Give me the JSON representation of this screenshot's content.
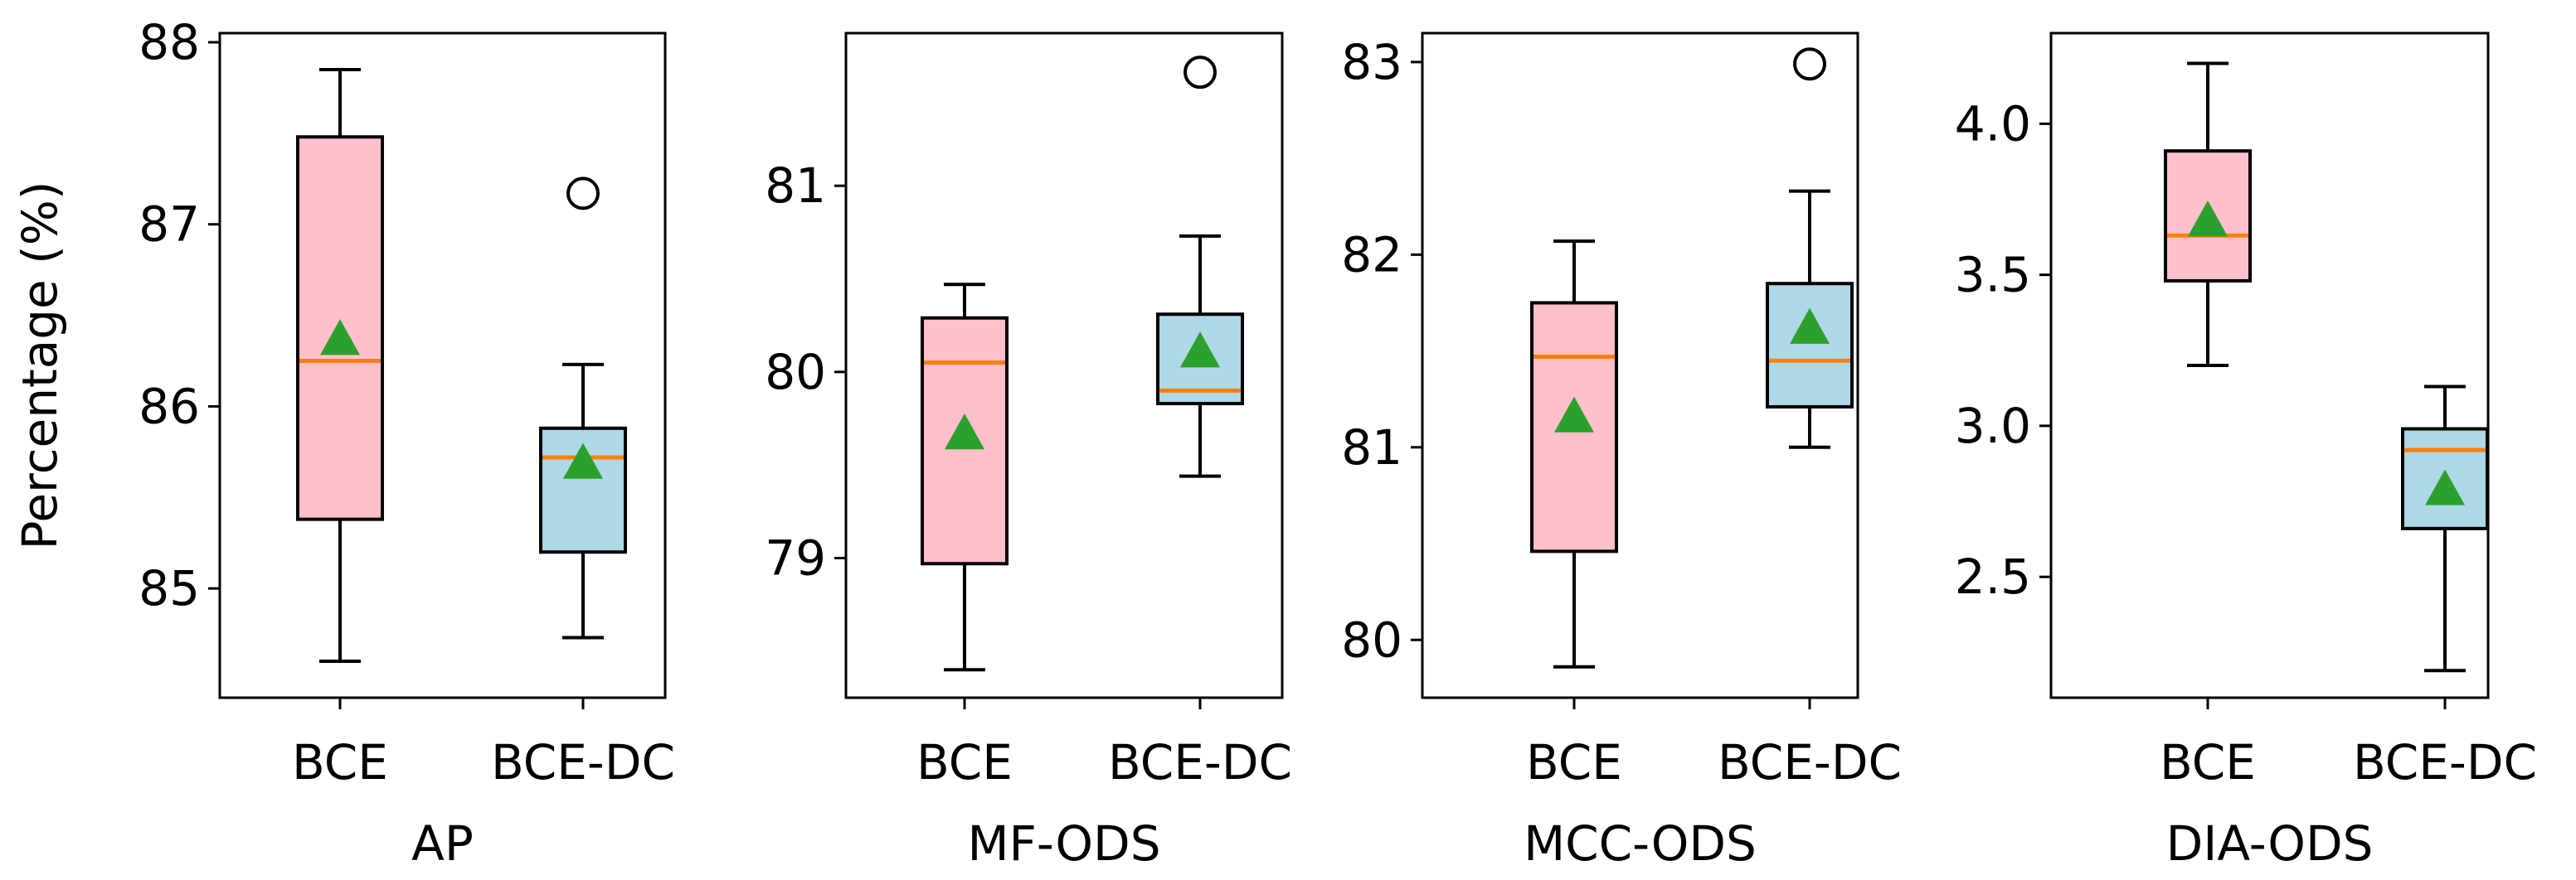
{
  "colors": {
    "bce_box": "#ffc0cb",
    "bce_dc_box": "#add8e6",
    "median": "#ff7f0e",
    "mean_marker": "#2ca02c",
    "outline": "#000000"
  },
  "chart_data": [
    {
      "type": "box",
      "xlabel": "AP",
      "ylabel": "Percentage (%)",
      "categories": [
        "BCE",
        "BCE-DC"
      ],
      "ylim": [
        84.4,
        88.05
      ],
      "yticks": [
        85,
        86,
        87,
        88
      ],
      "boxes": [
        {
          "name": "BCE",
          "whisker_low": 84.6,
          "q1": 85.38,
          "median": 86.25,
          "q3": 87.48,
          "whisker_high": 87.85,
          "mean": 86.37,
          "outliers": []
        },
        {
          "name": "BCE-DC",
          "whisker_low": 84.73,
          "q1": 85.2,
          "median": 85.72,
          "q3": 85.88,
          "whisker_high": 86.23,
          "mean": 85.69,
          "outliers": [
            87.17
          ]
        }
      ]
    },
    {
      "type": "box",
      "xlabel": "MF-ODS",
      "ylabel": "",
      "categories": [
        "BCE",
        "BCE-DC"
      ],
      "ylim": [
        78.25,
        81.82
      ],
      "yticks": [
        79,
        80,
        81
      ],
      "boxes": [
        {
          "name": "BCE",
          "whisker_low": 78.4,
          "q1": 78.97,
          "median": 80.05,
          "q3": 80.29,
          "whisker_high": 80.47,
          "mean": 79.67,
          "outliers": []
        },
        {
          "name": "BCE-DC",
          "whisker_low": 79.44,
          "q1": 79.83,
          "median": 79.9,
          "q3": 80.31,
          "whisker_high": 80.73,
          "mean": 80.11,
          "outliers": [
            81.61
          ]
        }
      ]
    },
    {
      "type": "box",
      "xlabel": "MCC-ODS",
      "ylabel": "",
      "categories": [
        "BCE",
        "BCE-DC"
      ],
      "ylim": [
        79.7,
        83.15
      ],
      "yticks": [
        80,
        81,
        82,
        83
      ],
      "boxes": [
        {
          "name": "BCE",
          "whisker_low": 79.86,
          "q1": 80.46,
          "median": 81.47,
          "q3": 81.75,
          "whisker_high": 82.07,
          "mean": 81.16,
          "outliers": []
        },
        {
          "name": "BCE-DC",
          "whisker_low": 81.0,
          "q1": 81.21,
          "median": 81.45,
          "q3": 81.85,
          "whisker_high": 82.33,
          "mean": 81.62,
          "outliers": [
            82.99
          ]
        }
      ]
    },
    {
      "type": "box",
      "xlabel": "DIA-ODS",
      "ylabel": "",
      "categories": [
        "BCE",
        "BCE-DC"
      ],
      "ylim": [
        2.1,
        4.3
      ],
      "yticks": [
        "2.5",
        "3.0",
        "3.5",
        "4.0"
      ],
      "boxes": [
        {
          "name": "BCE",
          "whisker_low": 3.2,
          "q1": 3.48,
          "median": 3.63,
          "q3": 3.91,
          "whisker_high": 4.2,
          "mean": 3.68,
          "outliers": []
        },
        {
          "name": "BCE-DC",
          "whisker_low": 2.19,
          "q1": 2.66,
          "median": 2.92,
          "q3": 2.99,
          "whisker_high": 3.13,
          "mean": 2.79,
          "outliers": []
        }
      ]
    }
  ]
}
